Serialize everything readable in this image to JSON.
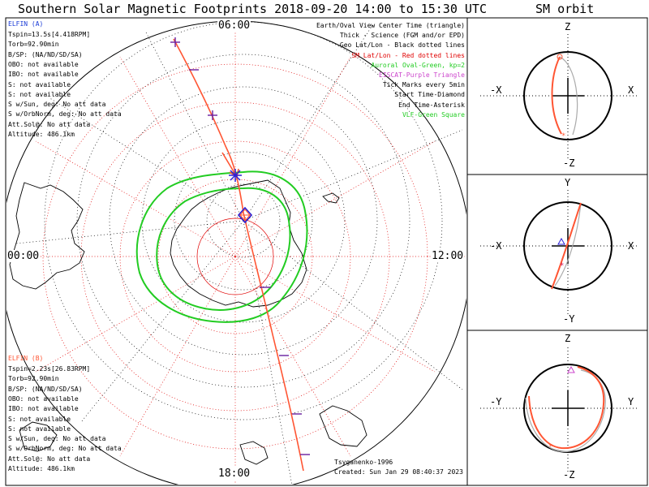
{
  "title": "Southern Solar Magnetic Footprints 2018-09-20 14:00 to 15:30 UTC",
  "orbit_title": "SM orbit",
  "hour_labels": {
    "top": "06:00",
    "left": "00:00",
    "right": "12:00",
    "bottom": "18:00"
  },
  "elfin_a": {
    "name": "ELFIN (A)",
    "lines": [
      "Tspin=13.5s[4.418RPM]",
      "Torb=92.90min",
      "B/SP: (NA/ND/SD/SA)",
      "OBO: not available",
      "IBO: not available",
      "S: not available",
      "S: not available",
      "S w/Sun, deg: No att data",
      "S w/OrbNorm, deg: No att data",
      "Att.Sol@: No att data",
      "Altitude: 486.1km"
    ],
    "color": "#1a3bd6"
  },
  "elfin_b": {
    "name": "ELFIN (B)",
    "lines": [
      "Tspin=2.23s[26.83RPM]",
      "Torb=92.90min",
      "B/SP: (NA/ND/SD/SA)",
      "OBO: not available",
      "IBO: not available",
      "S: not available",
      "S: not available",
      "S w/Sun, deg: No att data",
      "S w/OrbNorm, deg: No att data",
      "Att.Sol@: No att data",
      "Altitude: 486.1km"
    ],
    "color": "#ff5533"
  },
  "legend": [
    {
      "text": "Earth/Oval View Center Time (triangle)",
      "color": "#000000"
    },
    {
      "text": "Thick - Science (FGM and/or EPD)",
      "color": "#000000"
    },
    {
      "text": "Geo Lat/Lon - Black dotted lines",
      "color": "#000000"
    },
    {
      "text": "SM Lat/Lon - Red dotted lines",
      "color": "#e00000"
    },
    {
      "text": "Auroral Oval-Green, kp=2",
      "color": "#22cc22"
    },
    {
      "text": "EISCAT-Purple Triangle",
      "color": "#cc44cc"
    },
    {
      "text": "Tick Marks every 5min",
      "color": "#000000"
    },
    {
      "text": "Start Time-Diamond",
      "color": "#000000"
    },
    {
      "text": "End Time-Asterisk",
      "color": "#000000"
    },
    {
      "text": "VLF-Green Square",
      "color": "#22cc22"
    }
  ],
  "footer": {
    "model": "Tsyganenko-1996",
    "created": "Created: Sun Jan 29 08:40:37 2023"
  },
  "panels": [
    {
      "top": "Z",
      "bottom": "-Z",
      "left": "-X",
      "right": "X"
    },
    {
      "top": "Y",
      "bottom": "-Y",
      "left": "-X",
      "right": "X"
    },
    {
      "top": "Z",
      "bottom": "-Z",
      "left": "-Y",
      "right": "Y"
    }
  ],
  "colors": {
    "trace": "#ff5533",
    "sm_grid": "#e00000",
    "oval": "#22cc22",
    "coast": "#000000",
    "tick": "#6a1fa0"
  }
}
